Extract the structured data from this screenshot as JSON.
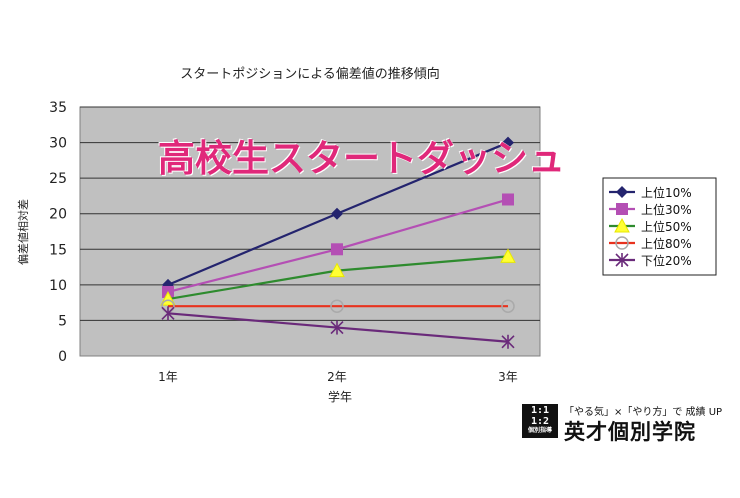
{
  "overlay_title": "高校生スタートダッシュ",
  "logo": {
    "mark_top": "1:1",
    "mark_mid": "1:2",
    "mark_sub": "個別指導",
    "tagline": "「やる気」×「やり方」で 成績 UP",
    "name": "英才個別学院"
  },
  "colors": {
    "plot_bg": "#c0c0c0",
    "title_pink": "#e0287a"
  },
  "chart_data": {
    "type": "line",
    "title": "スタートポジションによる偏差値の推移傾向",
    "xlabel": "学年",
    "ylabel": "偏差値相対差",
    "categories": [
      "1年",
      "2年",
      "3年"
    ],
    "ylim": [
      0,
      35
    ],
    "yticks": [
      0,
      5,
      10,
      15,
      20,
      25,
      30,
      35
    ],
    "grid": true,
    "legend_position": "right",
    "series": [
      {
        "name": "上位10%",
        "values": [
          10,
          20,
          30
        ],
        "color": "#24246e",
        "marker": "diamond"
      },
      {
        "name": "上位30%",
        "values": [
          9,
          15,
          22
        ],
        "color": "#b44fb4",
        "marker": "square"
      },
      {
        "name": "上位50%",
        "values": [
          8,
          12,
          14
        ],
        "color": "#2e8b2e",
        "marker": "triangle"
      },
      {
        "name": "上位80%",
        "values": [
          7,
          7,
          7
        ],
        "color": "#e8321e",
        "marker": "circle"
      },
      {
        "name": "下位20%",
        "values": [
          6,
          4,
          2
        ],
        "color": "#6a2a7a",
        "marker": "star"
      }
    ]
  }
}
